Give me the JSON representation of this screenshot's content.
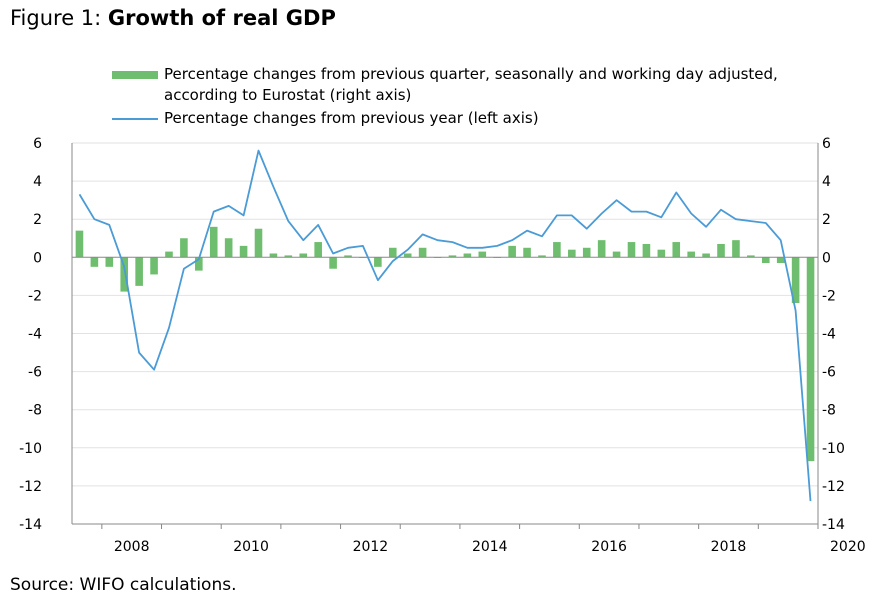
{
  "title": {
    "prefix": "Figure 1: ",
    "main": "Growth of real GDP"
  },
  "legend": {
    "bar_label": "Percentage changes from previous quarter, seasonally and working day adjusted, according to Eurostat (right axis)",
    "line_label": "Percentage changes from previous year (left axis)"
  },
  "source": "Source: WIFO calculations.",
  "colors": {
    "bar": "#6fbe6f",
    "line": "#4a9bd6",
    "grid": "#e2e2e2",
    "axis": "#888888"
  },
  "chart_data": {
    "type": "bar",
    "x_start": "2007Q3",
    "quarters_per_year": 4,
    "year_ticks": [
      "2008",
      "2010",
      "2012",
      "2014",
      "2016",
      "2018",
      "2020"
    ],
    "left_axis_ticks": [
      6,
      4,
      2,
      0,
      -2,
      -4,
      -6,
      -8,
      -10,
      -12,
      -14
    ],
    "right_axis_ticks": [
      6,
      4,
      2,
      0,
      -2,
      -4,
      -6,
      -8,
      -10,
      -12,
      -14
    ],
    "ylim": [
      -14,
      6
    ],
    "grid": true,
    "series": [
      {
        "name": "Percentage changes from previous quarter, seasonally and working day adjusted, according to Eurostat (right axis)",
        "type": "bar",
        "axis": "right",
        "values": [
          1.4,
          -0.5,
          -0.5,
          -1.8,
          -1.5,
          -0.9,
          0.3,
          1.0,
          -0.7,
          1.6,
          1.0,
          0.6,
          1.5,
          0.2,
          0.1,
          0.2,
          0.8,
          -0.6,
          0.1,
          0.0,
          -0.5,
          0.5,
          0.2,
          0.5,
          0.0,
          0.1,
          0.2,
          0.3,
          0.0,
          0.6,
          0.5,
          0.1,
          0.8,
          0.4,
          0.5,
          0.9,
          0.3,
          0.8,
          0.7,
          0.4,
          0.8,
          0.3,
          0.2,
          0.7,
          0.9,
          0.1,
          -0.3,
          -0.3,
          -2.4,
          -10.7
        ]
      },
      {
        "name": "Percentage changes from previous year (left axis)",
        "type": "line",
        "axis": "left",
        "values": [
          3.3,
          2.0,
          1.7,
          -0.5,
          -5.0,
          -5.9,
          -3.7,
          -0.6,
          -0.1,
          2.4,
          2.7,
          2.2,
          5.6,
          3.7,
          1.9,
          0.9,
          1.7,
          0.2,
          0.5,
          0.6,
          -1.2,
          -0.2,
          0.4,
          1.2,
          0.9,
          0.8,
          0.5,
          0.5,
          0.6,
          0.9,
          1.4,
          1.1,
          2.2,
          2.2,
          1.5,
          2.3,
          3.0,
          2.4,
          2.4,
          2.1,
          3.4,
          2.3,
          1.6,
          2.5,
          2.0,
          1.9,
          1.8,
          0.9,
          -2.8,
          -12.8
        ]
      }
    ]
  }
}
